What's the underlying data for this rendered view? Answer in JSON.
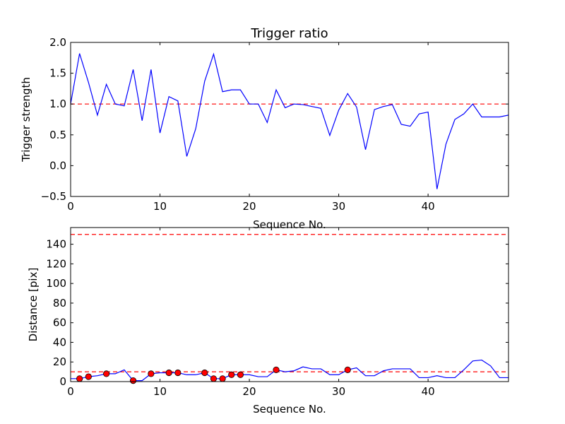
{
  "chart_data": [
    {
      "type": "line",
      "title": "Trigger ratio",
      "xlabel": "Sequence No.",
      "ylabel": "Trigger strength",
      "xlim": [
        0,
        49
      ],
      "ylim": [
        -0.5,
        2.0
      ],
      "xticks": [
        0,
        10,
        20,
        30,
        40
      ],
      "yticks": [
        -0.5,
        0.0,
        0.5,
        1.0,
        1.5,
        2.0
      ],
      "ytick_labels": [
        "−0.5",
        "0.0",
        "0.5",
        "1.0",
        "1.5",
        "2.0"
      ],
      "series": [
        {
          "name": "trigger strength",
          "color": "#0000ff",
          "x": [
            0,
            1,
            2,
            3,
            4,
            5,
            6,
            7,
            8,
            9,
            10,
            11,
            12,
            13,
            14,
            15,
            16,
            17,
            18,
            19,
            20,
            21,
            22,
            23,
            24,
            25,
            26,
            27,
            28,
            29,
            30,
            31,
            32,
            33,
            34,
            35,
            36,
            37,
            38,
            39,
            40,
            41,
            42,
            43,
            44,
            45,
            46,
            47,
            48,
            49
          ],
          "values": [
            1.0,
            1.82,
            1.35,
            0.82,
            1.32,
            1.0,
            0.97,
            1.56,
            0.73,
            1.56,
            0.53,
            1.12,
            1.05,
            0.15,
            0.6,
            1.37,
            1.81,
            1.2,
            1.23,
            1.23,
            1.0,
            1.0,
            0.7,
            1.23,
            0.94,
            1.0,
            0.99,
            0.96,
            0.93,
            0.49,
            0.9,
            1.17,
            0.95,
            0.26,
            0.91,
            0.96,
            0.99,
            0.67,
            0.64,
            0.84,
            0.87,
            -0.38,
            0.35,
            0.75,
            0.84,
            1.0,
            0.79,
            0.79,
            0.79,
            0.82
          ]
        }
      ],
      "hlines": [
        {
          "y": 1.0,
          "color": "#ff0000",
          "style": "dashed"
        }
      ]
    },
    {
      "type": "line",
      "xlabel": "Sequence No.",
      "ylabel": "Distance [pix]",
      "xlim": [
        0,
        49
      ],
      "ylim": [
        0,
        157
      ],
      "xticks": [
        0,
        10,
        20,
        30,
        40
      ],
      "yticks": [
        0,
        20,
        40,
        60,
        80,
        100,
        120,
        140
      ],
      "ytick_labels": [
        "0",
        "20",
        "40",
        "60",
        "80",
        "100",
        "120",
        "140"
      ],
      "series": [
        {
          "name": "distance",
          "color": "#0000ff",
          "x": [
            0,
            1,
            2,
            3,
            4,
            5,
            6,
            7,
            8,
            9,
            10,
            11,
            12,
            13,
            14,
            15,
            16,
            17,
            18,
            19,
            20,
            21,
            22,
            23,
            24,
            25,
            26,
            27,
            28,
            29,
            30,
            31,
            32,
            33,
            34,
            35,
            36,
            37,
            38,
            39,
            40,
            41,
            42,
            43,
            44,
            45,
            46,
            47,
            48,
            49
          ],
          "values": [
            3,
            3,
            5,
            6,
            8,
            8,
            12,
            1,
            1,
            8,
            9,
            9,
            9,
            7,
            7,
            9,
            3,
            3,
            7,
            7,
            7,
            5,
            5,
            12,
            10,
            11,
            15,
            13,
            13,
            7,
            7,
            12,
            14,
            6,
            6,
            11,
            13,
            13,
            13,
            4,
            4,
            6,
            4,
            4,
            12,
            21,
            22,
            16,
            4,
            4
          ]
        },
        {
          "name": "markers",
          "color": "#ff0000",
          "x": [
            1,
            2,
            4,
            7,
            9,
            11,
            12,
            15,
            16,
            17,
            18,
            19,
            23,
            31
          ],
          "values": [
            3,
            5,
            8,
            1,
            8,
            9,
            9,
            9,
            3,
            3,
            7,
            7,
            12,
            12
          ]
        }
      ],
      "hlines": [
        {
          "y": 150,
          "color": "#ff0000",
          "style": "dashed"
        },
        {
          "y": 10,
          "color": "#ff0000",
          "style": "dashed"
        }
      ]
    }
  ]
}
